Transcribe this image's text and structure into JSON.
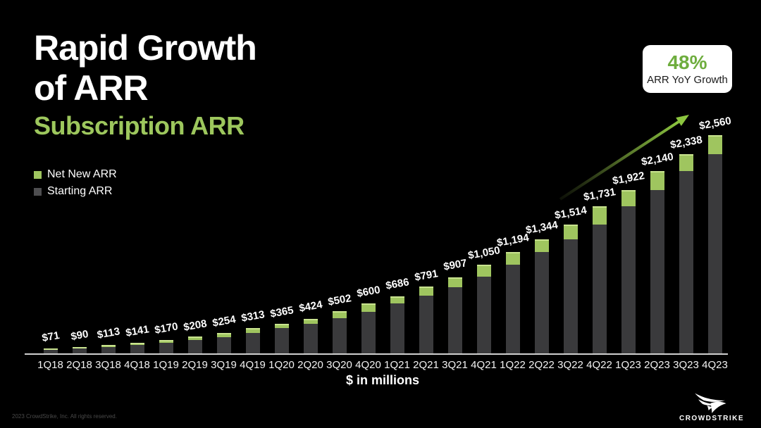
{
  "slide": {
    "title_line1": "Rapid Growth",
    "title_line2": "of ARR",
    "subtitle": "Subscription ARR",
    "footer": "2023 CrowdStrike, Inc. All rights reserved.",
    "logo_text": "CROWDSTRIKE"
  },
  "badge": {
    "value": "48%",
    "label": "ARR YoY Growth"
  },
  "legend": [
    {
      "label": "Net New ARR",
      "color": "#9FC55F"
    },
    {
      "label": "Starting ARR",
      "color": "#4E4E50"
    }
  ],
  "colors": {
    "background": "#000000",
    "accent_green": "#9DC75D",
    "bar_green": "#9FC55F",
    "bar_green_highlight": "#C9E38F",
    "bar_gray": "#3A3A3C",
    "badge_green": "#6EAD3E",
    "axis_line": "#CFCFCF",
    "arrow_green": "#8CC63F"
  },
  "chart_data": {
    "type": "bar",
    "stacked": true,
    "title": "Subscription ARR",
    "xlabel": "$ in millions",
    "ylabel": "",
    "ylim": [
      0,
      2560
    ],
    "grid": false,
    "legend_position": "top-left",
    "categories": [
      "1Q18",
      "2Q18",
      "3Q18",
      "4Q18",
      "1Q19",
      "2Q19",
      "3Q19",
      "4Q19",
      "1Q20",
      "2Q20",
      "3Q20",
      "4Q20",
      "1Q21",
      "2Q21",
      "3Q21",
      "4Q21",
      "1Q22",
      "2Q22",
      "3Q22",
      "4Q22",
      "1Q23",
      "2Q23",
      "3Q23",
      "4Q23"
    ],
    "totals": [
      71,
      90,
      113,
      141,
      170,
      208,
      254,
      313,
      365,
      424,
      502,
      600,
      686,
      791,
      907,
      1050,
      1194,
      1344,
      1514,
      1731,
      1922,
      2140,
      2338,
      2560
    ],
    "total_labels": [
      "$71",
      "$90",
      "$113",
      "$141",
      "$170",
      "$208",
      "$254",
      "$313",
      "$365",
      "$424",
      "$502",
      "$600",
      "$686",
      "$791",
      "$907",
      "$1,050",
      "$1,194",
      "$1,344",
      "$1,514",
      "$1,731",
      "$1,922",
      "$2,140",
      "$2,338",
      "$2,560"
    ],
    "series": [
      {
        "name": "Starting ARR",
        "color": "#3A3A3C",
        "values": [
          58,
          71,
          90,
          113,
          141,
          170,
          208,
          254,
          313,
          365,
          424,
          502,
          600,
          686,
          791,
          907,
          1050,
          1194,
          1344,
          1514,
          1731,
          1922,
          2140,
          2338
        ]
      },
      {
        "name": "Net New ARR",
        "color": "#9FC55F",
        "values": [
          13,
          19,
          23,
          28,
          29,
          38,
          46,
          59,
          52,
          59,
          78,
          98,
          86,
          105,
          116,
          143,
          144,
          150,
          170,
          217,
          191,
          218,
          198,
          222
        ]
      }
    ],
    "annotation": "up-right growth arrow pointing toward 48% ARR YoY Growth badge"
  }
}
